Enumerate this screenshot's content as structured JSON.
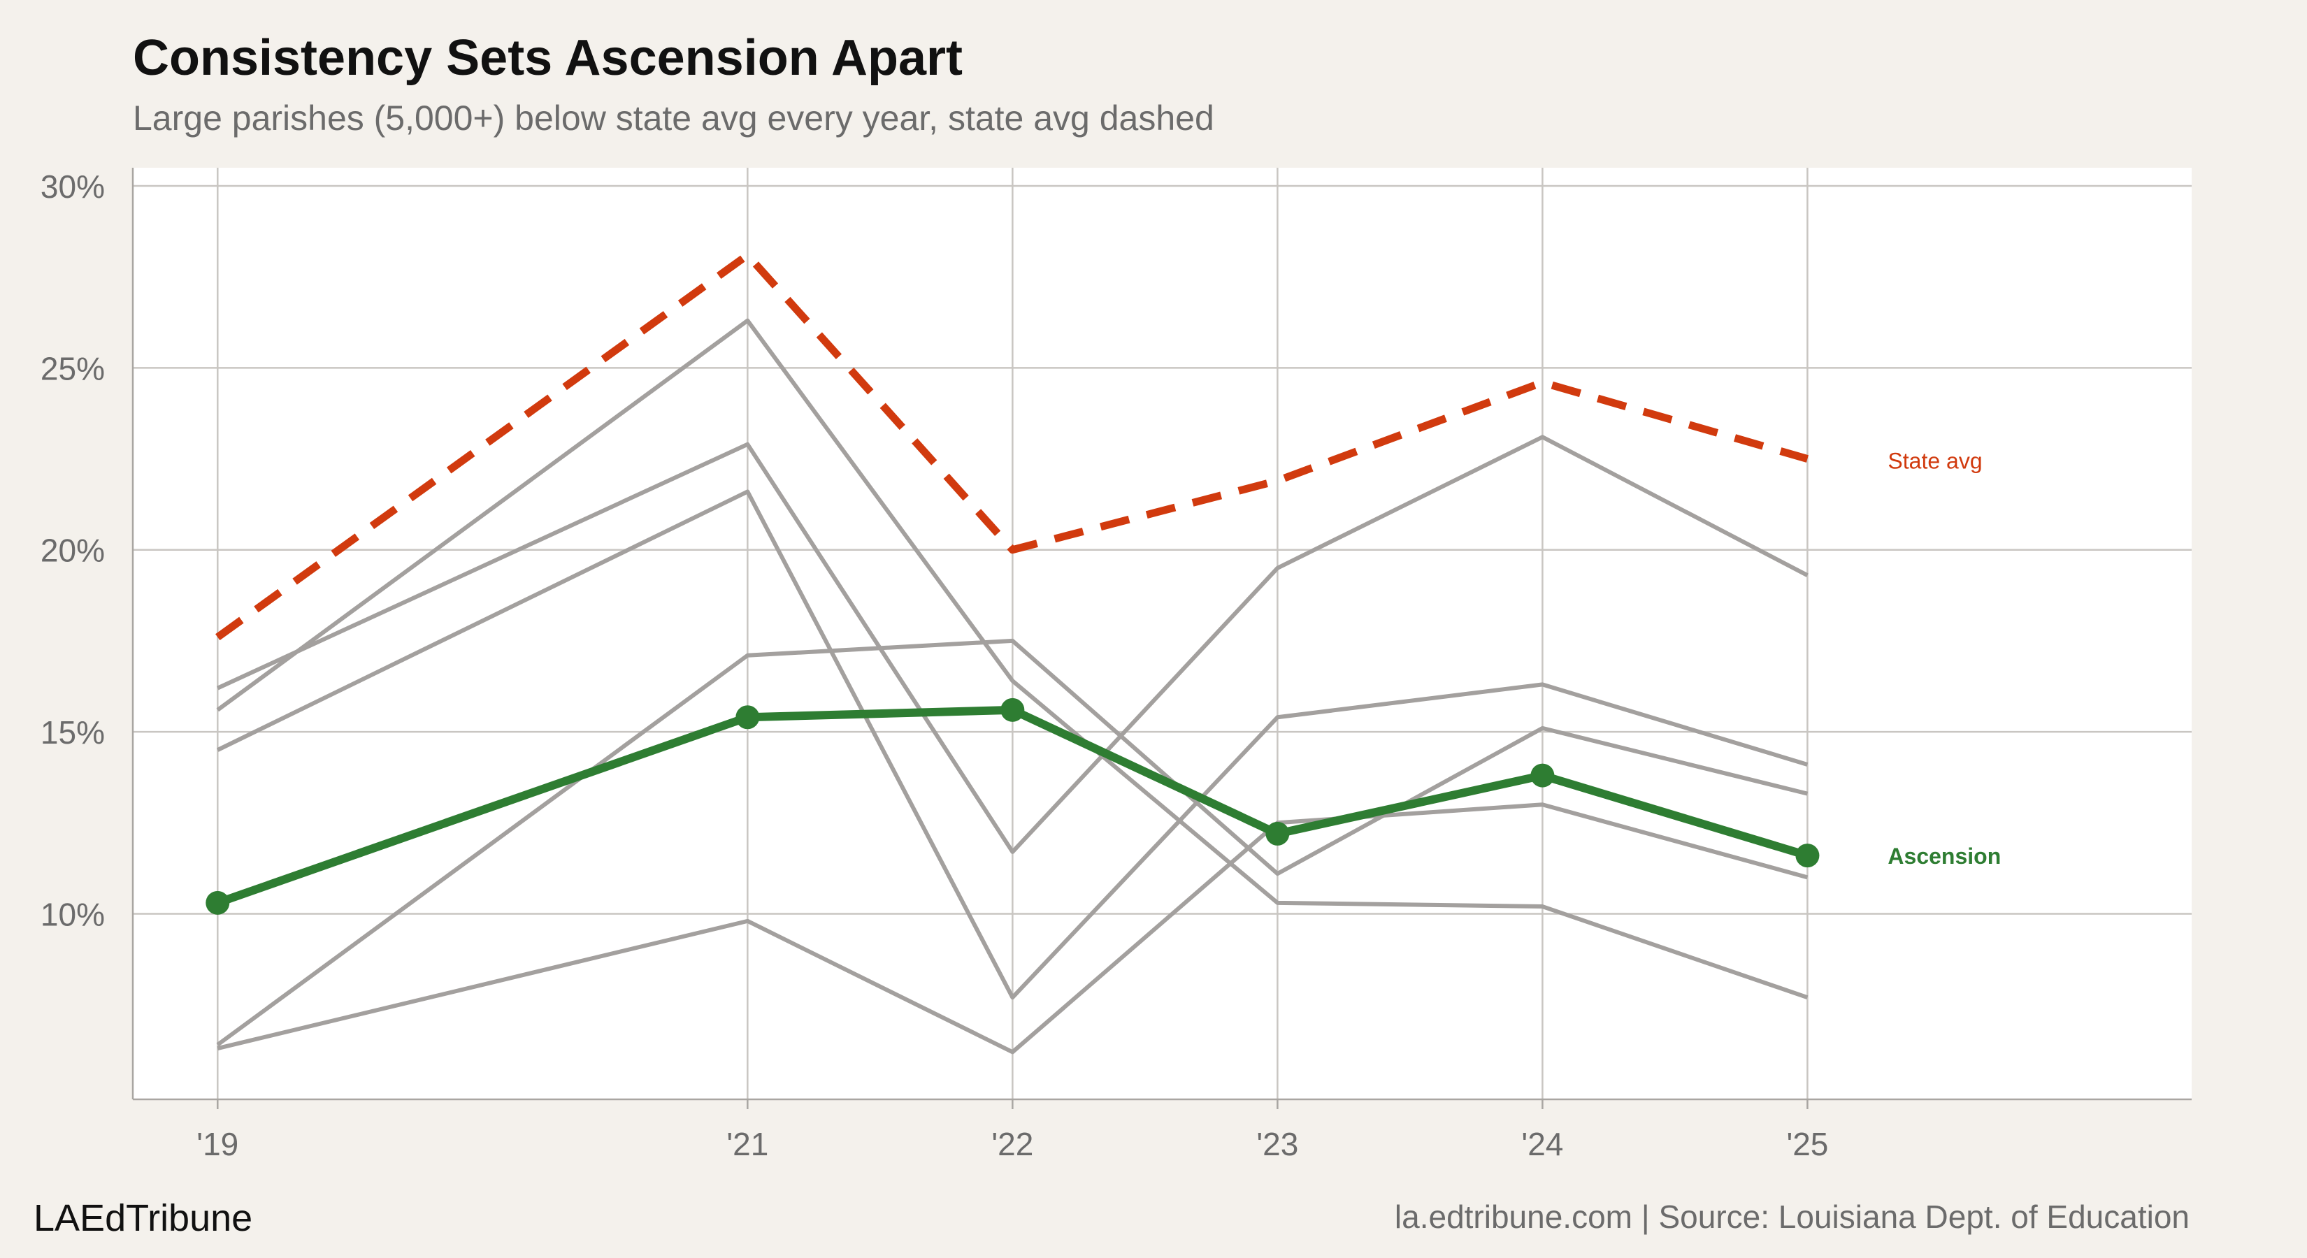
{
  "chart_data": {
    "type": "line",
    "title": "Consistency Sets Ascension Apart",
    "subtitle": "Large parishes (5,000+) below state avg every year, state avg dashed",
    "x": [
      2019,
      2021,
      2022,
      2023,
      2024,
      2025
    ],
    "x_tick_labels": [
      "'19",
      "'21",
      "'22",
      "'23",
      "'24",
      "'25"
    ],
    "y_tick_labels": [
      "30%",
      "25%",
      "20%",
      "15%",
      "10%"
    ],
    "y_ticks": [
      30,
      25,
      20,
      15,
      10
    ],
    "ylim": [
      4.9,
      30.5
    ],
    "xlim": [
      2018.68,
      2026.45
    ],
    "grid": true,
    "highlight": {
      "name": "Ascension",
      "color": "#2e7d32",
      "values": [
        10.3,
        15.4,
        15.6,
        12.2,
        13.8,
        11.6
      ]
    },
    "reference": {
      "name": "State avg",
      "color": "#d13a0e",
      "dashed": true,
      "values": [
        17.6,
        28.1,
        20.0,
        21.9,
        24.6,
        22.5
      ]
    },
    "background_series": [
      {
        "values": [
          16.2,
          22.9,
          11.7,
          19.5,
          23.1,
          19.3
        ]
      },
      {
        "values": [
          15.6,
          26.3,
          16.4,
          10.3,
          10.2,
          7.7
        ]
      },
      {
        "values": [
          14.5,
          21.6,
          7.7,
          15.4,
          16.3,
          14.1
        ]
      },
      {
        "values": [
          6.4,
          17.1,
          17.5,
          11.1,
          15.1,
          13.3
        ]
      },
      {
        "values": [
          6.3,
          9.8,
          6.2,
          12.5,
          13.0,
          11.0
        ]
      }
    ],
    "background_color": "#a3a09e"
  },
  "footer": {
    "brand": "LAEdTribune",
    "source": "la.edtribune.com | Source: Louisiana Dept. of Education"
  }
}
